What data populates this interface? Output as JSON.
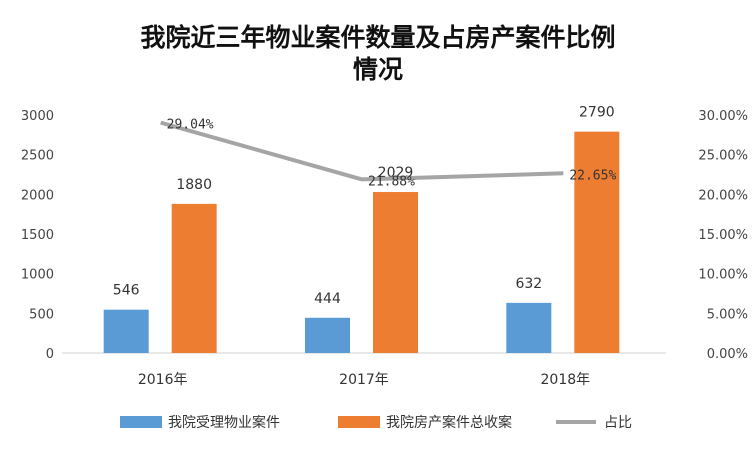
{
  "chart_data": {
    "type": "bar",
    "title_lines": [
      "我院近三年物业案件数量及占房产案件比例",
      "情况"
    ],
    "categories": [
      "2016年",
      "2017年",
      "2018年"
    ],
    "series": [
      {
        "name": "我院受理物业案件",
        "kind": "bar",
        "axis": "left",
        "color": "#5B9BD5",
        "values": [
          546,
          444,
          632
        ],
        "labels": [
          "546",
          "444",
          "632"
        ]
      },
      {
        "name": "我院房产案件总收案",
        "kind": "bar",
        "axis": "left",
        "color": "#ED7D31",
        "values": [
          1880,
          2029,
          2790
        ],
        "labels": [
          "1880",
          "2029",
          "2790"
        ]
      },
      {
        "name": "占比",
        "kind": "line",
        "axis": "right",
        "color": "#A5A5A5",
        "values": [
          29.04,
          21.88,
          22.65
        ],
        "labels": [
          "29.04%",
          "21.88%",
          "22.65%"
        ]
      }
    ],
    "y_left": {
      "min": 0,
      "max": 3000,
      "ticks": [
        "0",
        "500",
        "1000",
        "1500",
        "2000",
        "2500",
        "3000"
      ]
    },
    "y_right": {
      "min": 0,
      "max": 30,
      "ticks": [
        "0.00%",
        "5.00%",
        "10.00%",
        "15.00%",
        "20.00%",
        "25.00%",
        "30.00%"
      ]
    },
    "grid": false,
    "legend_position": "bottom"
  }
}
